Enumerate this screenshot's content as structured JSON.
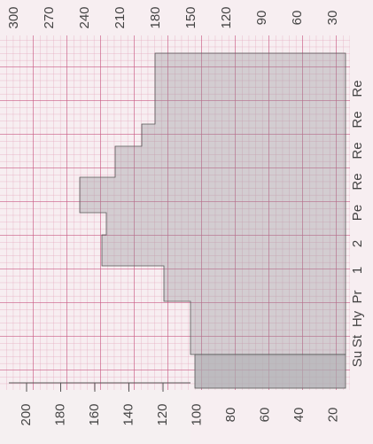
{
  "top_scale": {
    "labels": [
      "300",
      "270",
      "240",
      "210",
      "180",
      "150",
      "120",
      "90",
      "60",
      "30"
    ]
  },
  "bottom_scale": {
    "labels": [
      "200",
      "180",
      "160",
      "140",
      "120",
      "100",
      "80",
      "60",
      "40",
      "20"
    ]
  },
  "stage_labels": {
    "labels": [
      "Su",
      "St",
      "Hy",
      "Pr",
      "1",
      "2",
      "Pe",
      "Re",
      "Re",
      "Re",
      "Re"
    ]
  }
}
